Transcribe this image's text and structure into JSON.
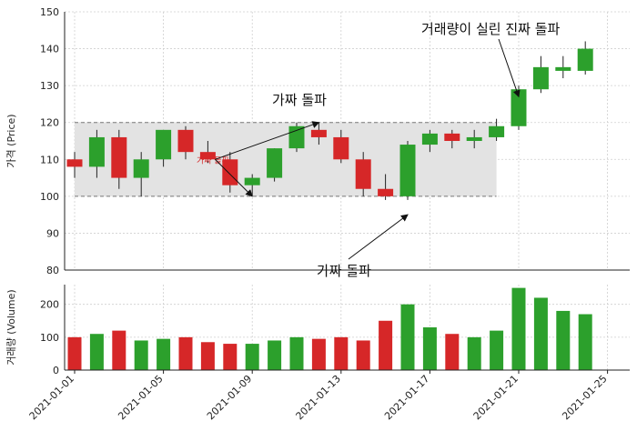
{
  "chart_data": [
    {
      "type": "candlestick",
      "ylabel": "가격 (Price)",
      "ylim": [
        80,
        150
      ],
      "yticks": [
        80,
        90,
        100,
        110,
        120,
        130,
        140,
        150
      ],
      "grid": true,
      "colors": {
        "up": "#2ca02c",
        "down": "#d62728",
        "band": "#e3e3e3"
      },
      "band": {
        "low": 100,
        "high": 120,
        "start": "2021-01-01",
        "end": "2021-01-20"
      },
      "x": [
        "2021-01-01",
        "2021-01-02",
        "2021-01-03",
        "2021-01-04",
        "2021-01-05",
        "2021-01-06",
        "2021-01-07",
        "2021-01-08",
        "2021-01-09",
        "2021-01-10",
        "2021-01-11",
        "2021-01-12",
        "2021-01-13",
        "2021-01-14",
        "2021-01-15",
        "2021-01-16",
        "2021-01-17",
        "2021-01-18",
        "2021-01-19",
        "2021-01-20",
        "2021-01-21",
        "2021-01-22",
        "2021-01-23",
        "2021-01-24"
      ],
      "open": [
        110,
        108,
        116,
        105,
        110,
        118,
        112,
        110,
        103,
        105,
        113,
        118,
        116,
        110,
        102,
        100,
        114,
        117,
        115,
        116,
        119,
        129,
        134,
        134
      ],
      "high": [
        112,
        118,
        118,
        112,
        118,
        119,
        115,
        112,
        106,
        113,
        120,
        120,
        118,
        112,
        106,
        115,
        118,
        118,
        118,
        121,
        130,
        138,
        138,
        142
      ],
      "low": [
        105,
        105,
        102,
        100,
        108,
        110,
        109,
        101,
        100,
        104,
        112,
        114,
        109,
        100,
        99,
        99,
        112,
        113,
        113,
        115,
        118,
        128,
        132,
        133
      ],
      "close": [
        108,
        116,
        105,
        110,
        118,
        112,
        110,
        103,
        105,
        113,
        119,
        116,
        110,
        102,
        100,
        114,
        117,
        115,
        116,
        119,
        129,
        135,
        135,
        140
      ],
      "annotations": [
        {
          "text": "가짜 돌파",
          "target_x": "2021-01-12",
          "target_y": 120,
          "from_x": "2021-01-07",
          "from_y": 110
        },
        {
          "text": "가짜 돌파",
          "target_x": "2021-01-09",
          "target_y": 100,
          "from_x": "2021-01-07",
          "from_y": 110
        },
        {
          "text": "가짜 돌파",
          "target_x": "2021-01-16",
          "target_y": 95,
          "from_x": "2021-01-13",
          "from_y": 80
        },
        {
          "text": "거래량이 실린 진짜 돌파",
          "target_x": "2021-01-21",
          "target_y": 127,
          "from_x": "2021-01-20",
          "from_y": 145
        }
      ],
      "inline_label": "가짜 돌파"
    },
    {
      "type": "bar",
      "ylabel": "거래량 (Volume)",
      "ylim": [
        0,
        260
      ],
      "yticks": [
        0,
        100,
        200
      ],
      "grid": true,
      "x": [
        "2021-01-01",
        "2021-01-02",
        "2021-01-03",
        "2021-01-04",
        "2021-01-05",
        "2021-01-06",
        "2021-01-07",
        "2021-01-08",
        "2021-01-09",
        "2021-01-10",
        "2021-01-11",
        "2021-01-12",
        "2021-01-13",
        "2021-01-14",
        "2021-01-15",
        "2021-01-16",
        "2021-01-17",
        "2021-01-18",
        "2021-01-19",
        "2021-01-20",
        "2021-01-21",
        "2021-01-22",
        "2021-01-23",
        "2021-01-24"
      ],
      "values": [
        100,
        110,
        120,
        90,
        95,
        100,
        85,
        80,
        80,
        90,
        100,
        95,
        100,
        90,
        150,
        200,
        130,
        110,
        100,
        120,
        250,
        220,
        180,
        170
      ],
      "xticks": [
        "2021-01-01",
        "2021-01-05",
        "2021-01-09",
        "2021-01-13",
        "2021-01-17",
        "2021-01-21",
        "2021-01-25"
      ]
    }
  ]
}
